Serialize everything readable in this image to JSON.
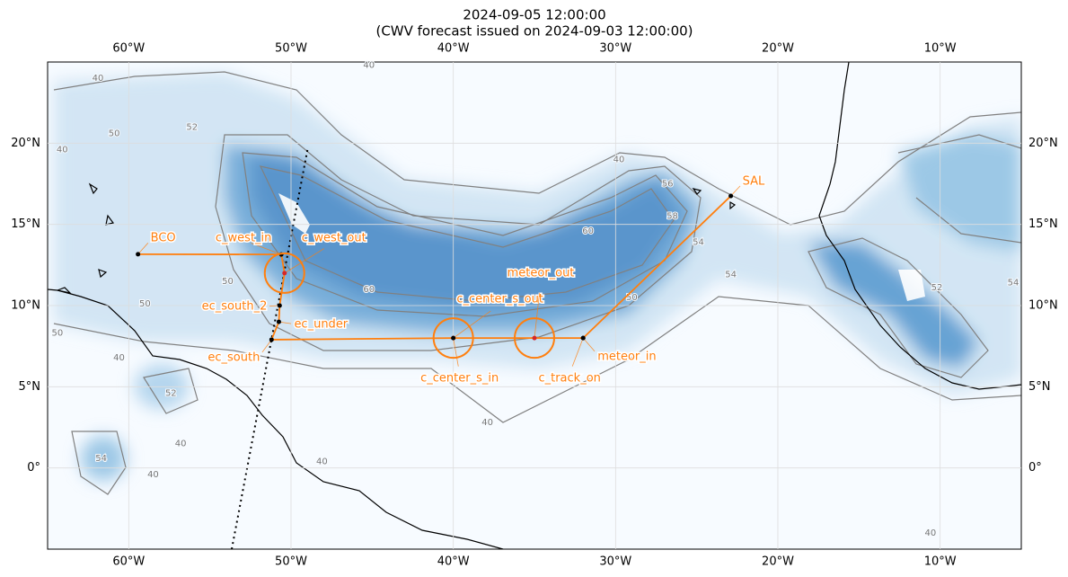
{
  "map": {
    "title": [
      "2024-09-05 12:00:00",
      "(CWV forecast issued on 2024-09-03 12:00:00)"
    ],
    "lonlim": [
      -65,
      -5
    ],
    "latlim": [
      -5,
      25
    ],
    "lon_ticks": [
      {
        "value": -60,
        "label": "60°W"
      },
      {
        "value": -50,
        "label": "50°W"
      },
      {
        "value": -40,
        "label": "40°W"
      },
      {
        "value": -30,
        "label": "30°W"
      },
      {
        "value": -20,
        "label": "20°W"
      },
      {
        "value": -10,
        "label": "10°W"
      }
    ],
    "lat_ticks": [
      {
        "value": 0,
        "label": "0°"
      },
      {
        "value": 5,
        "label": "5°N"
      },
      {
        "value": 10,
        "label": "10°N"
      },
      {
        "value": 15,
        "label": "15°N"
      },
      {
        "value": 20,
        "label": "20°N"
      }
    ],
    "grid": true,
    "track_color": "#ff7f0e",
    "waypoints": [
      {
        "name": "BCO",
        "lon": -59.43,
        "lat": 13.16
      },
      {
        "name": "c_west_in",
        "lon": -50.6,
        "lat": 13.15
      },
      {
        "name": "c_west_out",
        "lon": -50.4,
        "lat": 12.0
      },
      {
        "name": "ec_south_2",
        "lon": -50.7,
        "lat": 10.0
      },
      {
        "name": "ec_under",
        "lon": -50.75,
        "lat": 9.0
      },
      {
        "name": "ec_south",
        "lon": -51.2,
        "lat": 7.9
      },
      {
        "name": "c_center_s_in",
        "lon": -40.0,
        "lat": 8.0
      },
      {
        "name": "c_center_s_out",
        "lon": -40.0,
        "lat": 8.0
      },
      {
        "name": "meteor_out",
        "lon": -35.0,
        "lat": 8.0
      },
      {
        "name": "c_track_on",
        "lon": -32.0,
        "lat": 8.0
      },
      {
        "name": "meteor_in",
        "lon": -32.0,
        "lat": 8.0
      },
      {
        "name": "SAL",
        "lon": -22.9,
        "lat": 16.75
      }
    ],
    "contour_labels": [
      {
        "value": 40,
        "lon": -61.9,
        "lat": 24.0
      },
      {
        "value": 50,
        "lon": -60.9,
        "lat": 20.6
      },
      {
        "value": 52,
        "lon": -56.1,
        "lat": 21.0
      },
      {
        "value": 40,
        "lon": -45.2,
        "lat": 24.8
      },
      {
        "value": 40,
        "lon": -29.8,
        "lat": 19.0
      },
      {
        "value": 56,
        "lon": -26.8,
        "lat": 17.5
      },
      {
        "value": 58,
        "lon": -26.5,
        "lat": 15.5
      },
      {
        "value": 60,
        "lon": -31.7,
        "lat": 14.6
      },
      {
        "value": 54,
        "lon": -24.9,
        "lat": 13.9
      },
      {
        "value": 54,
        "lon": -22.9,
        "lat": 11.9
      },
      {
        "value": 50,
        "lon": -29.0,
        "lat": 10.5
      },
      {
        "value": 60,
        "lon": -45.2,
        "lat": 11.0
      },
      {
        "value": 50,
        "lon": -53.9,
        "lat": 11.5
      },
      {
        "value": 50,
        "lon": -59.0,
        "lat": 10.1
      },
      {
        "value": 40,
        "lon": -60.6,
        "lat": 6.8
      },
      {
        "value": 52,
        "lon": -57.4,
        "lat": 4.6
      },
      {
        "value": 40,
        "lon": -56.8,
        "lat": 1.5
      },
      {
        "value": 54,
        "lon": -61.7,
        "lat": 0.6
      },
      {
        "value": 40,
        "lon": -58.5,
        "lat": -0.4
      },
      {
        "value": 40,
        "lon": -48.1,
        "lat": 0.4
      },
      {
        "value": 40,
        "lon": -37.9,
        "lat": 2.8
      },
      {
        "value": 40,
        "lon": -10.6,
        "lat": -4.0
      },
      {
        "value": 52,
        "lon": -10.2,
        "lat": 11.1
      },
      {
        "value": 54,
        "lon": -5.5,
        "lat": 11.4
      },
      {
        "value": 50,
        "lon": -64.4,
        "lat": 8.3
      },
      {
        "value": 40,
        "lon": -64.1,
        "lat": 19.6
      }
    ]
  }
}
